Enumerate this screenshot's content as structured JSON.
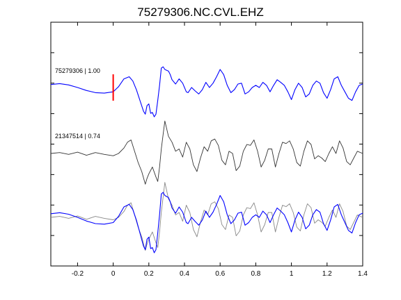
{
  "chart_data": {
    "type": "line",
    "title": "75279306.NC.CVL.EHZ",
    "xlim": [
      -0.35,
      1.4
    ],
    "xticks": [
      -0.2,
      0,
      0.2,
      0.4,
      0.6,
      0.8,
      1,
      1.2,
      1.4
    ],
    "xtick_labels": [
      "-0.2",
      "0",
      "0.2",
      "0.4",
      "0.6",
      "0.8",
      "1",
      "1.2",
      "1.4"
    ],
    "xlabel": "",
    "ylabel": "",
    "y_tick_count": 7,
    "pick_time": 0,
    "grid": false,
    "colors": {
      "primary": "#0000ff",
      "secondary": "#333333",
      "overlay_secondary": "#888888",
      "pick": "#ff0000"
    },
    "series": [
      {
        "label": "75279306 | 1.00",
        "role": "top",
        "x": [
          -0.35,
          -0.3,
          -0.25,
          -0.2,
          -0.15,
          -0.1,
          -0.05,
          0.0,
          0.03,
          0.06,
          0.09,
          0.11,
          0.13,
          0.15,
          0.17,
          0.18,
          0.19,
          0.2,
          0.21,
          0.22,
          0.23,
          0.24,
          0.25,
          0.26,
          0.27,
          0.28,
          0.29,
          0.3,
          0.31,
          0.32,
          0.33,
          0.35,
          0.37,
          0.39,
          0.41,
          0.42,
          0.44,
          0.46,
          0.48,
          0.5,
          0.52,
          0.54,
          0.56,
          0.58,
          0.6,
          0.62,
          0.64,
          0.66,
          0.68,
          0.7,
          0.72,
          0.74,
          0.76,
          0.78,
          0.8,
          0.82,
          0.84,
          0.86,
          0.88,
          0.9,
          0.92,
          0.94,
          0.96,
          0.98,
          1.0,
          1.02,
          1.04,
          1.06,
          1.08,
          1.1,
          1.12,
          1.14,
          1.16,
          1.18,
          1.2,
          1.22,
          1.24,
          1.26,
          1.28,
          1.3,
          1.32,
          1.34,
          1.36,
          1.38,
          1.4
        ],
        "y": [
          0.07,
          0.09,
          0.06,
          0.0,
          -0.07,
          -0.12,
          -0.13,
          -0.1,
          0.02,
          0.2,
          0.25,
          0.15,
          -0.05,
          -0.3,
          -0.55,
          -0.62,
          -0.42,
          -0.38,
          -0.6,
          -0.58,
          -0.68,
          -0.62,
          -0.3,
          0.05,
          0.45,
          0.48,
          0.42,
          0.4,
          0.38,
          0.3,
          0.18,
          0.08,
          0.2,
          0.1,
          -0.1,
          -0.12,
          0.0,
          -0.08,
          -0.15,
          -0.05,
          0.12,
          0.0,
          0.1,
          0.25,
          0.42,
          0.3,
          0.05,
          -0.12,
          -0.05,
          0.08,
          0.1,
          -0.15,
          -0.1,
          0.0,
          0.05,
          0.0,
          0.12,
          0.05,
          -0.1,
          0.05,
          0.18,
          0.12,
          0.05,
          -0.1,
          -0.28,
          -0.05,
          0.1,
          0.0,
          -0.22,
          -0.15,
          0.05,
          0.15,
          0.1,
          -0.12,
          -0.25,
          -0.05,
          0.2,
          0.25,
          0.05,
          -0.1,
          -0.25,
          -0.3,
          -0.1,
          0.05,
          0.08
        ]
      },
      {
        "label": "21347514 | 0.74",
        "role": "middle",
        "x": [
          -0.35,
          -0.3,
          -0.25,
          -0.2,
          -0.15,
          -0.1,
          -0.05,
          0.0,
          0.03,
          0.06,
          0.08,
          0.1,
          0.12,
          0.14,
          0.16,
          0.18,
          0.19,
          0.2,
          0.22,
          0.24,
          0.25,
          0.26,
          0.27,
          0.28,
          0.29,
          0.3,
          0.31,
          0.33,
          0.35,
          0.37,
          0.39,
          0.41,
          0.43,
          0.45,
          0.47,
          0.49,
          0.51,
          0.53,
          0.55,
          0.57,
          0.59,
          0.61,
          0.63,
          0.65,
          0.67,
          0.69,
          0.71,
          0.73,
          0.75,
          0.77,
          0.79,
          0.81,
          0.83,
          0.85,
          0.87,
          0.89,
          0.91,
          0.93,
          0.95,
          0.97,
          0.99,
          1.01,
          1.03,
          1.05,
          1.07,
          1.09,
          1.11,
          1.13,
          1.15,
          1.17,
          1.19,
          1.21,
          1.23,
          1.25,
          1.27,
          1.29,
          1.31,
          1.33,
          1.35,
          1.37,
          1.4
        ],
        "y": [
          0.0,
          0.02,
          -0.02,
          0.03,
          -0.04,
          0.02,
          -0.02,
          -0.05,
          0.0,
          0.12,
          0.25,
          0.3,
          0.05,
          -0.2,
          -0.4,
          -0.68,
          -0.55,
          -0.45,
          -0.3,
          -0.52,
          -0.62,
          -0.3,
          0.1,
          0.42,
          0.72,
          0.55,
          0.38,
          0.25,
          0.05,
          0.1,
          -0.08,
          0.25,
          0.1,
          -0.25,
          -0.4,
          -0.1,
          0.15,
          0.05,
          0.28,
          0.32,
          0.18,
          -0.15,
          -0.25,
          0.05,
          0.0,
          -0.38,
          -0.28,
          0.05,
          0.2,
          0.18,
          0.3,
          0.05,
          -0.3,
          -0.15,
          0.1,
          0.1,
          -0.3,
          0.0,
          0.25,
          0.22,
          0.28,
          0.1,
          -0.2,
          -0.28,
          0.05,
          0.28,
          0.2,
          -0.12,
          -0.05,
          -0.1,
          -0.18,
          0.0,
          0.15,
          0.0,
          0.28,
          0.12,
          -0.18,
          -0.25,
          -0.1,
          0.05,
          0.0
        ]
      },
      {
        "label": "",
        "role": "overlay-primary",
        "x": [
          -0.35,
          -0.3,
          -0.25,
          -0.2,
          -0.15,
          -0.1,
          -0.05,
          0.0,
          0.03,
          0.06,
          0.09,
          0.11,
          0.13,
          0.15,
          0.17,
          0.18,
          0.19,
          0.2,
          0.21,
          0.22,
          0.23,
          0.24,
          0.25,
          0.26,
          0.27,
          0.28,
          0.29,
          0.3,
          0.31,
          0.32,
          0.33,
          0.35,
          0.37,
          0.39,
          0.41,
          0.42,
          0.44,
          0.46,
          0.48,
          0.5,
          0.52,
          0.54,
          0.56,
          0.58,
          0.6,
          0.62,
          0.64,
          0.66,
          0.68,
          0.7,
          0.72,
          0.74,
          0.76,
          0.78,
          0.8,
          0.82,
          0.84,
          0.86,
          0.88,
          0.9,
          0.92,
          0.94,
          0.96,
          0.98,
          1.0,
          1.02,
          1.04,
          1.06,
          1.08,
          1.1,
          1.12,
          1.14,
          1.16,
          1.18,
          1.2,
          1.22,
          1.24,
          1.26,
          1.28,
          1.3,
          1.32,
          1.34,
          1.36,
          1.38,
          1.4
        ],
        "y": [
          0.07,
          0.09,
          0.06,
          0.0,
          -0.07,
          -0.12,
          -0.13,
          -0.1,
          0.02,
          0.2,
          0.25,
          0.15,
          -0.05,
          -0.3,
          -0.55,
          -0.62,
          -0.42,
          -0.38,
          -0.6,
          -0.58,
          -0.68,
          -0.62,
          -0.3,
          0.05,
          0.45,
          0.48,
          0.42,
          0.4,
          0.38,
          0.3,
          0.18,
          0.08,
          0.2,
          0.1,
          -0.1,
          -0.12,
          0.0,
          -0.08,
          -0.15,
          -0.05,
          0.12,
          0.0,
          0.1,
          0.25,
          0.42,
          0.3,
          0.05,
          -0.12,
          -0.05,
          0.08,
          0.1,
          -0.15,
          -0.1,
          0.0,
          0.05,
          0.0,
          0.12,
          0.05,
          -0.1,
          0.05,
          0.18,
          0.12,
          0.05,
          -0.1,
          -0.28,
          -0.05,
          0.1,
          0.0,
          -0.22,
          -0.15,
          0.05,
          0.15,
          0.1,
          -0.12,
          -0.25,
          -0.05,
          0.2,
          0.25,
          0.05,
          -0.1,
          -0.25,
          -0.3,
          -0.1,
          0.05,
          0.08
        ]
      },
      {
        "label": "",
        "role": "overlay-secondary",
        "x": [
          -0.35,
          -0.3,
          -0.25,
          -0.2,
          -0.15,
          -0.1,
          -0.05,
          0.0,
          0.03,
          0.06,
          0.08,
          0.1,
          0.12,
          0.14,
          0.16,
          0.18,
          0.19,
          0.2,
          0.22,
          0.24,
          0.25,
          0.26,
          0.27,
          0.28,
          0.29,
          0.3,
          0.31,
          0.33,
          0.35,
          0.37,
          0.39,
          0.41,
          0.43,
          0.45,
          0.47,
          0.49,
          0.51,
          0.53,
          0.55,
          0.57,
          0.59,
          0.61,
          0.63,
          0.65,
          0.67,
          0.69,
          0.71,
          0.73,
          0.75,
          0.77,
          0.79,
          0.81,
          0.83,
          0.85,
          0.87,
          0.89,
          0.91,
          0.93,
          0.95,
          0.97,
          0.99,
          1.01,
          1.03,
          1.05,
          1.07,
          1.09,
          1.11,
          1.13,
          1.15,
          1.17,
          1.19,
          1.21,
          1.23,
          1.25,
          1.27,
          1.29,
          1.31,
          1.33,
          1.35,
          1.37,
          1.4
        ],
        "y": [
          0.0,
          0.02,
          -0.02,
          0.03,
          -0.04,
          0.02,
          -0.02,
          -0.05,
          0.0,
          0.12,
          0.25,
          0.3,
          0.05,
          -0.2,
          -0.4,
          -0.68,
          -0.55,
          -0.45,
          -0.3,
          -0.52,
          -0.62,
          -0.3,
          0.1,
          0.42,
          0.72,
          0.55,
          0.38,
          0.25,
          0.05,
          0.1,
          -0.08,
          0.25,
          0.1,
          -0.25,
          -0.4,
          -0.1,
          0.15,
          0.05,
          0.28,
          0.32,
          0.18,
          -0.15,
          -0.25,
          0.05,
          0.0,
          -0.38,
          -0.28,
          0.05,
          0.2,
          0.18,
          0.3,
          0.05,
          -0.3,
          -0.15,
          0.1,
          0.1,
          -0.3,
          0.0,
          0.25,
          0.22,
          0.28,
          0.1,
          -0.2,
          -0.28,
          0.05,
          0.28,
          0.2,
          -0.12,
          -0.05,
          -0.1,
          -0.18,
          0.0,
          0.15,
          0.0,
          0.28,
          0.12,
          -0.18,
          -0.25,
          -0.1,
          0.05,
          0.0
        ]
      }
    ]
  }
}
